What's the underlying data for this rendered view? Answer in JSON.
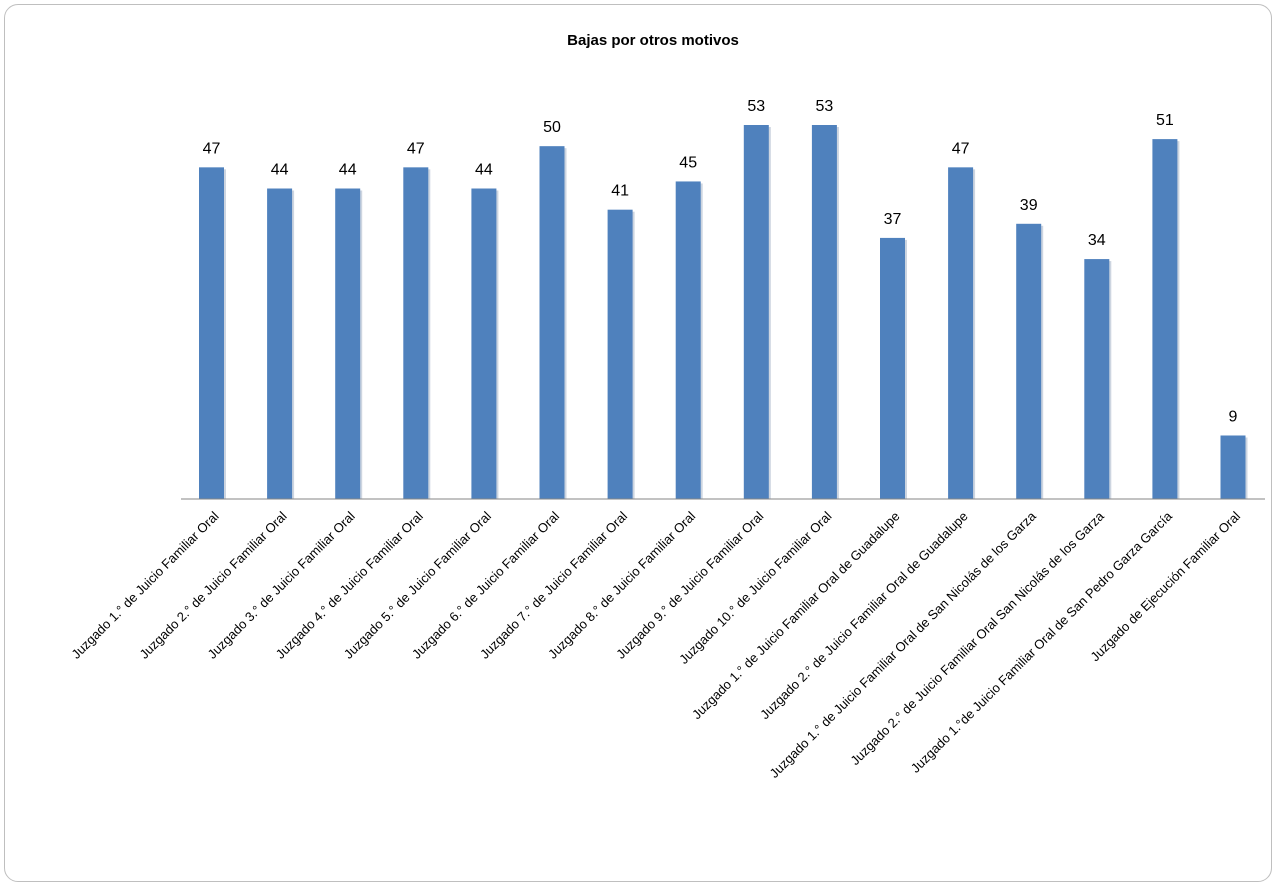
{
  "chart_data": {
    "type": "bar",
    "title": "Bajas por otros motivos",
    "categories": [
      "Juzgado 1.° de Juicio Familiar Oral",
      "Juzgado 2.° de Juicio Familiar Oral",
      "Juzgado 3.° de Juicio Familiar Oral",
      "Juzgado 4.° de Juicio Familiar Oral",
      "Juzgado 5.° de Juicio Familiar Oral",
      "Juzgado 6.° de Juicio Familiar Oral",
      "Juzgado 7.° de Juicio Familiar Oral",
      "Juzgado 8.° de Juicio Familiar Oral",
      "Juzgado 9.° de Juicio Familiar Oral",
      "Juzgado 10.° de Juicio Familiar Oral",
      "Juzgado 1.° de Juicio Familiar Oral de Guadalupe",
      "Juzgado 2.° de Juicio Familiar Oral de Guadalupe",
      "Juzgado 1.° de Juicio Familiar Oral de San Nicolás de los Garza",
      "Juzgado 2.° de Juicio Familiar Oral San Nicolás de los Garza",
      "Juzgado 1.°de Juicio Familiar Oral de San Pedro Garza García",
      "Juzgado de Ejecución Familiar Oral"
    ],
    "values": [
      47,
      44,
      44,
      47,
      44,
      50,
      41,
      45,
      53,
      53,
      37,
      47,
      39,
      34,
      51,
      9
    ],
    "ylim": [
      0,
      53
    ],
    "colors": {
      "bar": "#4F81BD",
      "bar_shadow": "#cdd5e0",
      "axis": "#868686"
    },
    "grid": false,
    "legend": "none"
  }
}
